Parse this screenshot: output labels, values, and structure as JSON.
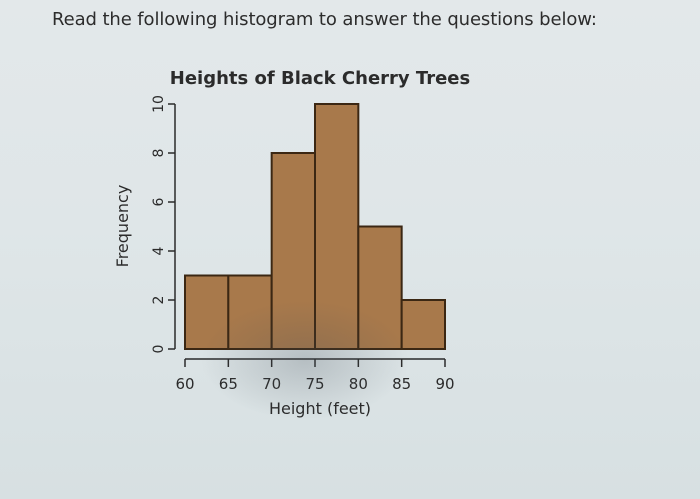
{
  "prompt_text": "Read the following histogram to answer the questions below:",
  "chart_data": {
    "type": "bar",
    "title": "Heights of Black Cherry Trees",
    "xlabel": "Height (feet)",
    "ylabel": "Frequency",
    "bins": [
      {
        "from": 60,
        "to": 65,
        "value": 3
      },
      {
        "from": 65,
        "to": 70,
        "value": 3
      },
      {
        "from": 70,
        "to": 75,
        "value": 8
      },
      {
        "from": 75,
        "to": 80,
        "value": 10
      },
      {
        "from": 80,
        "to": 85,
        "value": 5
      },
      {
        "from": 85,
        "to": 90,
        "value": 2
      }
    ],
    "xlim": [
      60,
      90
    ],
    "ylim": [
      0,
      10
    ],
    "x_ticks": [
      "60",
      "65",
      "70",
      "75",
      "80",
      "85",
      "90"
    ],
    "y_ticks": [
      "0",
      "2",
      "4",
      "6",
      "8",
      "10"
    ],
    "grid": false,
    "bar_color": "#a8794b",
    "bar_edge_color": "#3b2713"
  }
}
